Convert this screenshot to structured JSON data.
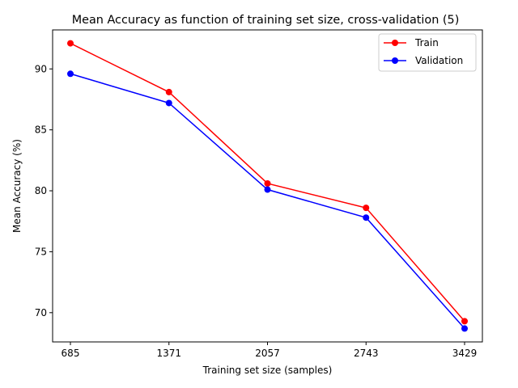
{
  "chart_data": {
    "type": "line",
    "title": "Mean Accuracy as function of training set size, cross-validation (5)",
    "xlabel": "Training set size (samples)",
    "ylabel": "Mean Accuracy (%)",
    "x": [
      685,
      1371,
      2057,
      2743,
      3429
    ],
    "xticks": [
      "685",
      "1371",
      "2057",
      "2743",
      "3429"
    ],
    "yticks": [
      70,
      75,
      80,
      85,
      90
    ],
    "ylim": [
      67.6,
      93.2
    ],
    "grid": false,
    "legend_position": "top-right",
    "series": [
      {
        "name": "Train",
        "color": "#ff0000",
        "values": [
          92.1,
          88.1,
          80.6,
          78.6,
          69.3
        ]
      },
      {
        "name": "Validation",
        "color": "#0000ff",
        "values": [
          89.6,
          87.2,
          80.1,
          77.8,
          68.7
        ]
      }
    ]
  }
}
